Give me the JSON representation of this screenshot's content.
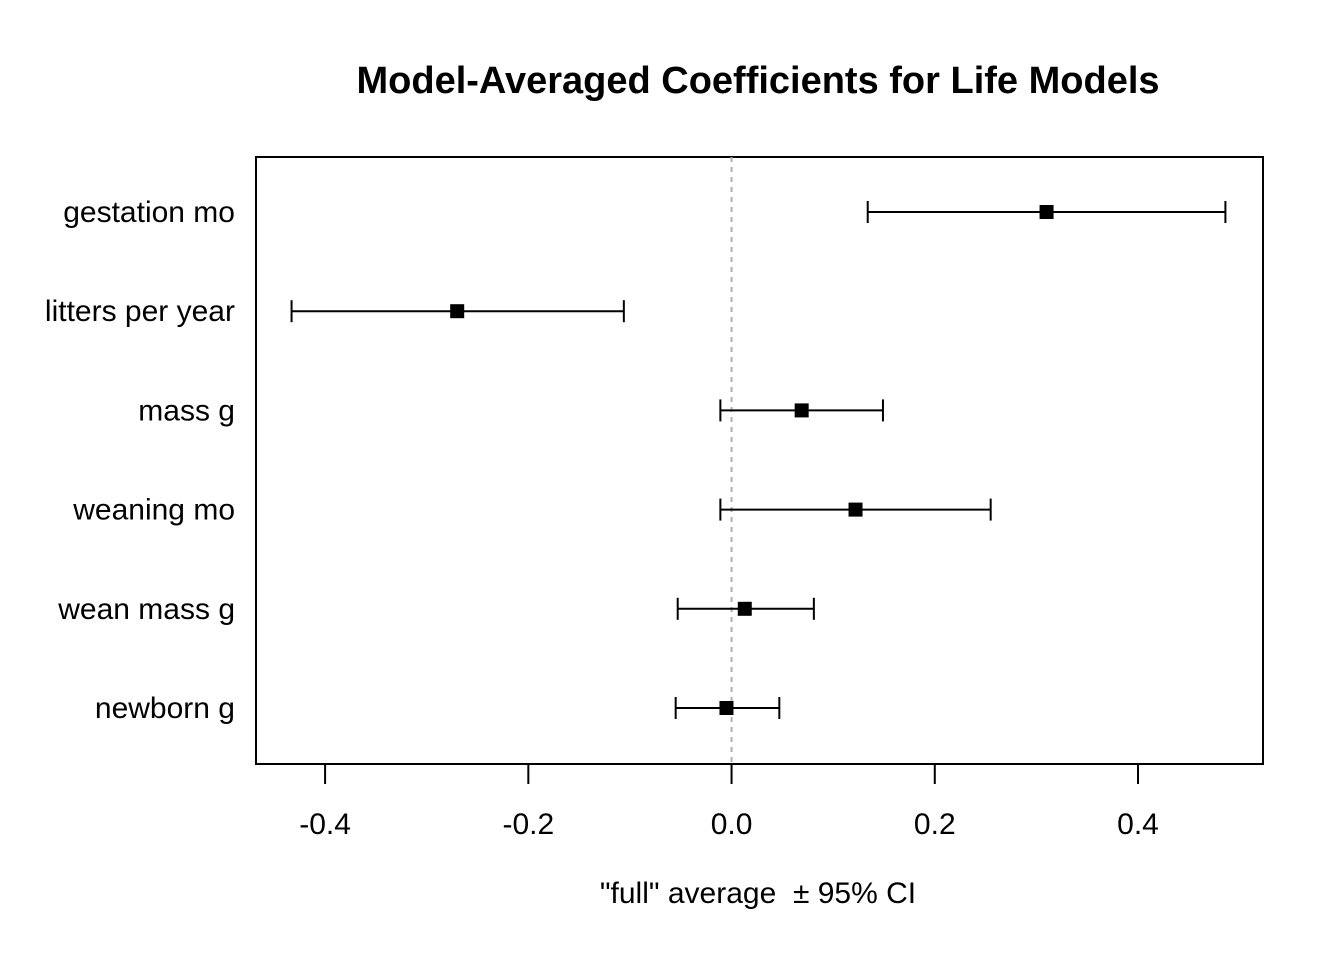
{
  "chart_data": {
    "type": "scatter",
    "title": "Model-Averaged Coefficients for Life Models",
    "xlabel": "\"full\" average  ± 95% CI",
    "ylabel": "",
    "xlim": [
      -0.468,
      0.523
    ],
    "xticks": [
      "-0.4",
      "-0.2",
      "0.0",
      "0.2",
      "0.4"
    ],
    "reference_line": 0,
    "grid": false,
    "legend": "none",
    "series": [
      {
        "categories": [
          "gestation  mo",
          "litters  per  year",
          "mass  g",
          "weaning  mo",
          "wean  mass  g",
          "newborn  g"
        ],
        "estimate": [
          0.31,
          -0.27,
          0.069,
          0.122,
          0.013,
          -0.005
        ],
        "ci_low": [
          0.134,
          -0.433,
          -0.011,
          -0.011,
          -0.053,
          -0.055
        ],
        "ci_high": [
          0.486,
          -0.106,
          0.149,
          0.255,
          0.081,
          0.047
        ]
      }
    ]
  }
}
